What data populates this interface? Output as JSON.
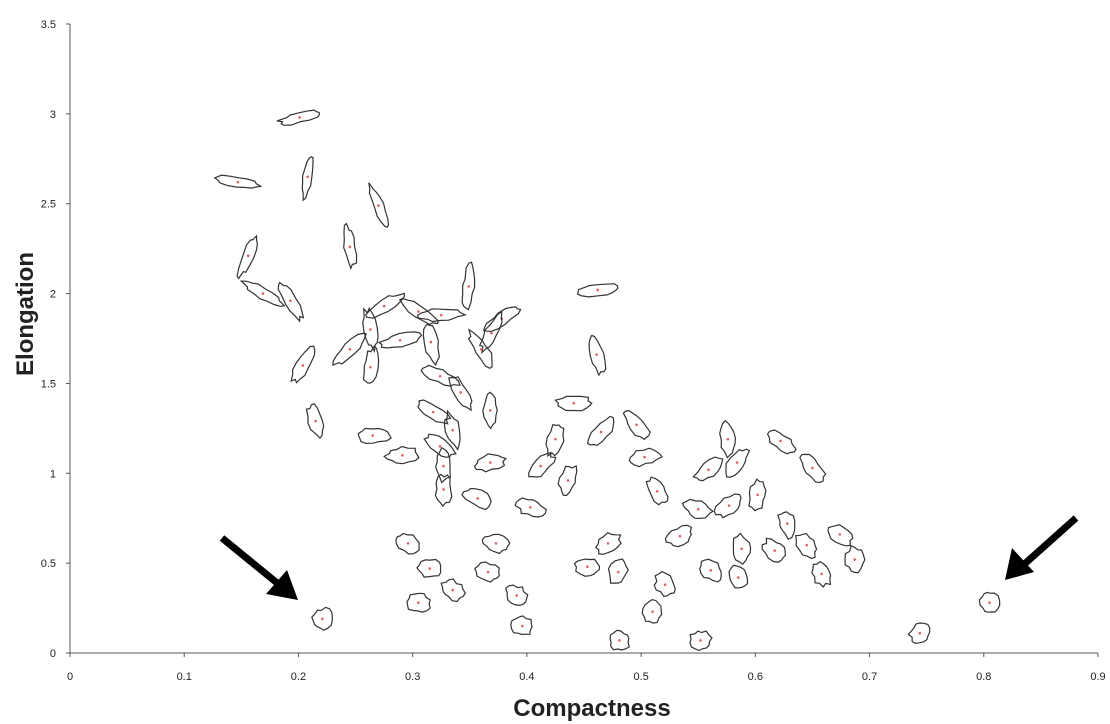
{
  "chart_data": {
    "type": "scatter",
    "x_label": "Compactness",
    "y_label": "Elongation",
    "color": "#333333",
    "label_color": "#e06060",
    "xlim": [
      0,
      0.9
    ],
    "xticks": [
      0,
      0.1,
      0.2,
      0.3,
      0.4,
      0.5,
      0.6,
      0.7,
      0.8,
      0.9
    ],
    "ylim": [
      0,
      3.5
    ],
    "yticks": [
      0,
      0.5,
      1,
      1.5,
      2,
      2.5,
      3,
      3.5
    ],
    "grid": false,
    "x": [
      0.201,
      0.147,
      0.208,
      0.27,
      0.245,
      0.156,
      0.169,
      0.193,
      0.349,
      0.462,
      0.275,
      0.305,
      0.325,
      0.378,
      0.263,
      0.289,
      0.316,
      0.369,
      0.36,
      0.245,
      0.263,
      0.204,
      0.461,
      0.324,
      0.342,
      0.368,
      0.441,
      0.318,
      0.215,
      0.265,
      0.465,
      0.496,
      0.335,
      0.324,
      0.425,
      0.291,
      0.368,
      0.327,
      0.412,
      0.436,
      0.503,
      0.576,
      0.622,
      0.584,
      0.559,
      0.65,
      0.327,
      0.357,
      0.403,
      0.514,
      0.55,
      0.577,
      0.602,
      0.628,
      0.534,
      0.588,
      0.617,
      0.645,
      0.674,
      0.296,
      0.373,
      0.471,
      0.315,
      0.366,
      0.453,
      0.48,
      0.561,
      0.585,
      0.521,
      0.658,
      0.687,
      0.335,
      0.305,
      0.391,
      0.51,
      0.396,
      0.221,
      0.481,
      0.552,
      0.744,
      0.805
    ],
    "values": [
      2.98,
      2.62,
      2.65,
      2.49,
      2.26,
      2.21,
      2.0,
      1.96,
      2.04,
      2.02,
      1.93,
      1.9,
      1.88,
      1.86,
      1.8,
      1.74,
      1.73,
      1.78,
      1.69,
      1.69,
      1.59,
      1.6,
      1.66,
      1.54,
      1.45,
      1.35,
      1.39,
      1.34,
      1.29,
      1.21,
      1.23,
      1.27,
      1.24,
      1.15,
      1.19,
      1.1,
      1.06,
      1.04,
      1.04,
      0.96,
      1.09,
      1.19,
      1.18,
      1.06,
      1.02,
      1.03,
      0.91,
      0.86,
      0.81,
      0.9,
      0.8,
      0.82,
      0.88,
      0.72,
      0.65,
      0.58,
      0.57,
      0.6,
      0.66,
      0.61,
      0.61,
      0.61,
      0.47,
      0.45,
      0.48,
      0.45,
      0.46,
      0.42,
      0.38,
      0.44,
      0.52,
      0.35,
      0.28,
      0.32,
      0.23,
      0.15,
      0.19,
      0.07,
      0.07,
      0.11,
      0.28
    ]
  }
}
